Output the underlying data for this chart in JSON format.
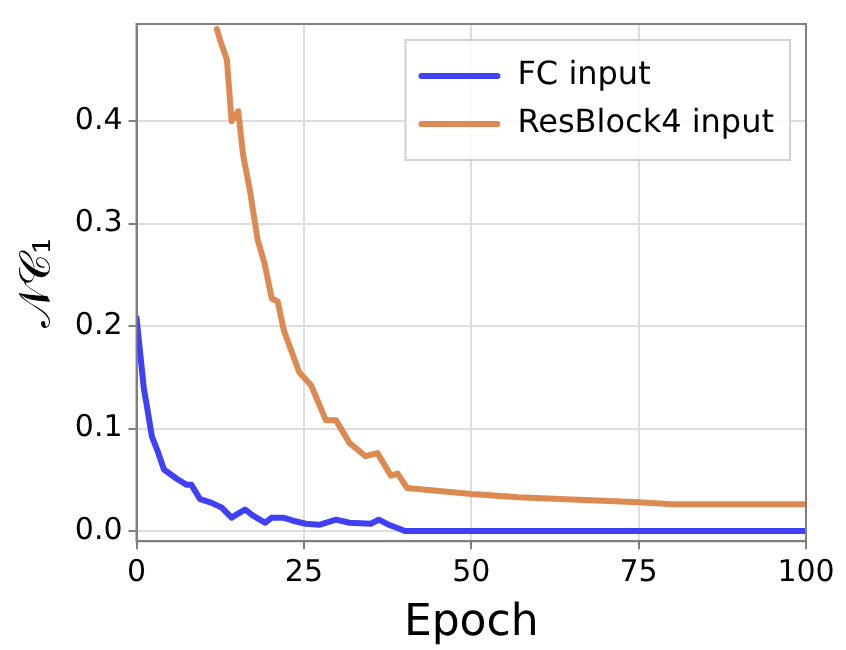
{
  "chart_data": {
    "type": "line",
    "xlabel": "Epoch",
    "ylabel": "𝒩𝒞₁",
    "xlim": [
      0,
      100
    ],
    "xticks": [
      0,
      25,
      50,
      75,
      100
    ],
    "ylim": [
      -0.01,
      0.495
    ],
    "yticks": [
      {
        "value": 0,
        "label": "0.0"
      },
      0.1,
      0.2,
      0.3,
      0.4
    ],
    "grid": true,
    "legend": "top right",
    "marker": "none",
    "line_style": "solid",
    "series": [
      {
        "name": "FC input",
        "color": "#4040f8",
        "x": [
          0,
          1.1,
          1.6,
          2.3,
          3.1,
          4.1,
          6,
          7.5,
          8.2,
          9.5,
          11,
          12.7,
          14.2,
          16.2,
          17.4,
          19.2,
          20.2,
          21.9,
          23.4,
          25.3,
          27.3,
          29.8,
          31.8,
          35,
          36.2,
          37.7,
          40.1,
          50,
          60,
          70,
          80,
          90,
          100
        ],
        "values": [
          0.208,
          0.139,
          0.12,
          0.092,
          0.079,
          0.06,
          0.051,
          0.045,
          0.045,
          0.031,
          0.028,
          0.023,
          0.013,
          0.021,
          0.015,
          0.008,
          0.013,
          0.013,
          0.01,
          0.007,
          0.006,
          0.011,
          0.008,
          0.007,
          0.011,
          0.006,
          0,
          0,
          0,
          0,
          0,
          0,
          0
        ]
      },
      {
        "name": "ResBlock4 input",
        "color": "#dd8a52",
        "x": [
          12,
          12.5,
          13.5,
          14.2,
          15.2,
          15.9,
          16.9,
          18.1,
          19.1,
          20.2,
          21.1,
          22,
          24.3,
          26.1,
          28.3,
          29.8,
          31.8,
          34.2,
          36,
          38,
          39,
          40.4,
          50,
          57,
          75,
          80,
          90,
          100
        ],
        "values": [
          0.49,
          0.479,
          0.46,
          0.4,
          0.41,
          0.368,
          0.334,
          0.284,
          0.262,
          0.227,
          0.224,
          0.196,
          0.155,
          0.142,
          0.108,
          0.108,
          0.086,
          0.073,
          0.076,
          0.054,
          0.056,
          0.042,
          0.036,
          0.033,
          0.028,
          0.026,
          0.026,
          0.026
        ]
      }
    ]
  }
}
